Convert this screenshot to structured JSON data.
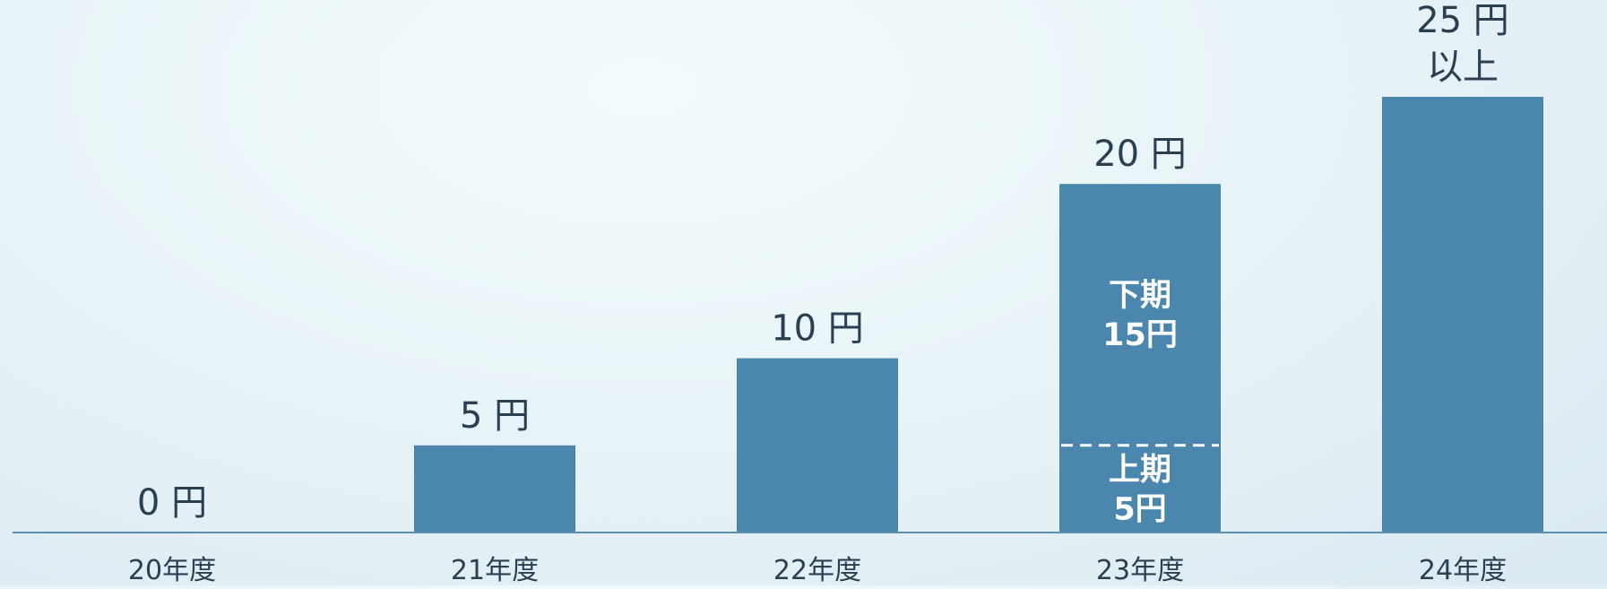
{
  "chart_data": {
    "type": "bar",
    "categories": [
      "20年度",
      "21年度",
      "22年度",
      "23年度",
      "24年度"
    ],
    "values": [
      0,
      5,
      10,
      20,
      25
    ],
    "value_labels": [
      [
        "0 円"
      ],
      [
        "5 円"
      ],
      [
        "10 円"
      ],
      [
        "20 円"
      ],
      [
        "25 円",
        "以上"
      ]
    ],
    "segments": {
      "category_index": 3,
      "lower": {
        "value": 5,
        "lines": [
          "上期",
          "5円"
        ]
      },
      "upper": {
        "value": 15,
        "lines": [
          "下期",
          "15円"
        ]
      }
    },
    "ylim": [
      0,
      25
    ],
    "grid": false,
    "legend": "none",
    "colors": {
      "bar": "#4a86ad",
      "axis": "#5b8fb3",
      "text": "#2a3f52",
      "inner_text": "#ffffff"
    }
  }
}
